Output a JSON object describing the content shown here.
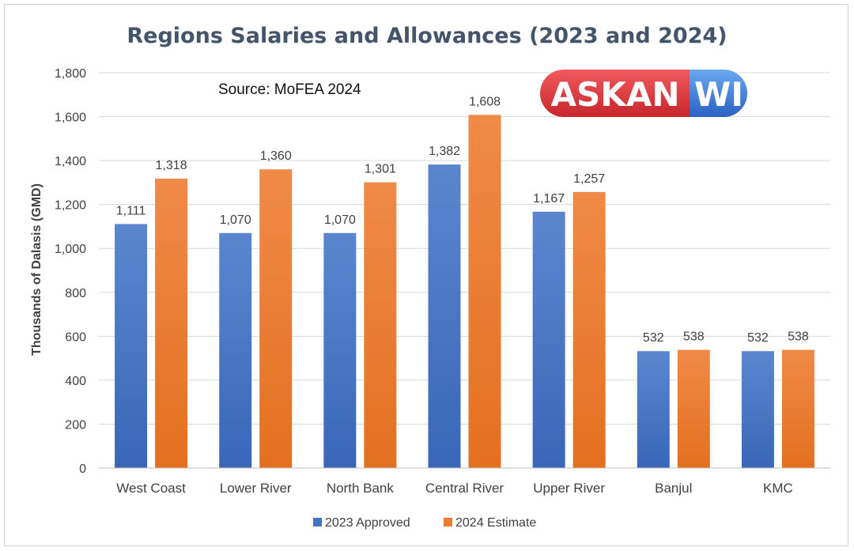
{
  "chart_data": {
    "type": "bar",
    "title": "Regions Salaries and Allowances (2023 and 2024)",
    "ylabel": "Thousands of Dalasis (GMD)",
    "xlabel": "",
    "ylim": [
      0,
      1800
    ],
    "yticks": [
      "0",
      "200",
      "400",
      "600",
      "800",
      "1,000",
      "1,200",
      "1,400",
      "1,600",
      "1,800"
    ],
    "categories": [
      "West Coast",
      "Lower River",
      "North Bank",
      "Central River",
      "Upper River",
      "Banjul",
      "KMC"
    ],
    "series": [
      {
        "name": "2023 Approved",
        "values": [
          1111,
          1070,
          1070,
          1382,
          1167,
          532,
          532
        ],
        "labels": [
          "1,111",
          "1,070",
          "1,070",
          "1,382",
          "1,167",
          "532",
          "532"
        ],
        "color": "#4472c4"
      },
      {
        "name": "2024 Estimate",
        "values": [
          1318,
          1360,
          1301,
          1608,
          1257,
          538,
          538
        ],
        "labels": [
          "1,318",
          "1,360",
          "1,301",
          "1,608",
          "1,257",
          "538",
          "538"
        ],
        "color": "#ed7d31"
      }
    ],
    "grid": true,
    "legend": "bottom",
    "annotation": "Source: MoFEA 2024"
  },
  "logo": {
    "part1": "ASKAN",
    "part2": "WI",
    "colors": {
      "red": "#e03a3e",
      "blue": "#2e6fd0"
    }
  }
}
